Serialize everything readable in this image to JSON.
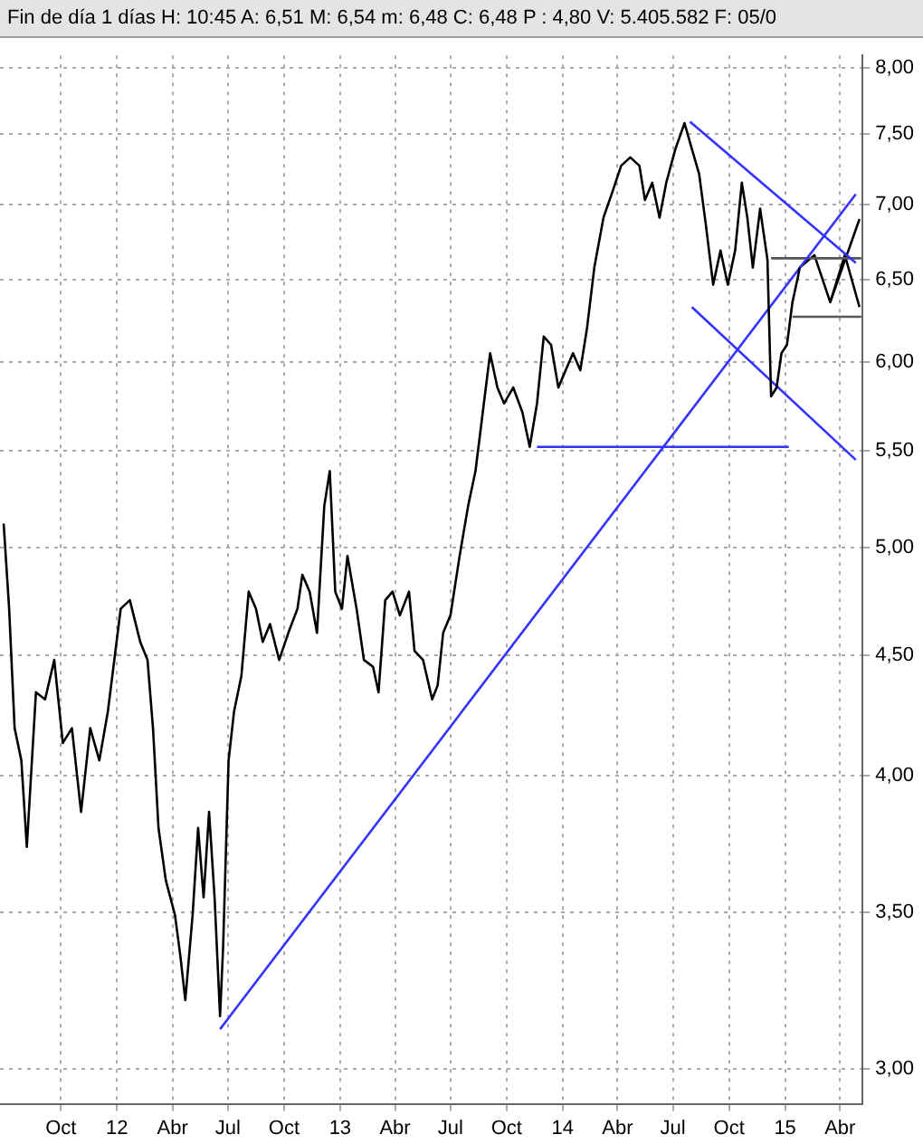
{
  "chart_data": {
    "type": "line",
    "title": "Fin de día 1 días H: 10:45 A: 6,51 M: 6,54 m: 6,48 C: 6,48 P : 4,80 V: 5.405.582 F: 05/0",
    "log": "y",
    "grid": true,
    "legend": false,
    "marker": "none",
    "xlim": [
      "2011-06-23",
      "2015-05-08"
    ],
    "xticks": [
      {
        "value": "2011-10-01",
        "label": "Oct"
      },
      {
        "value": "2012-01-01",
        "label": "12"
      },
      {
        "value": "2012-04-01",
        "label": "Abr"
      },
      {
        "value": "2012-07-01",
        "label": "Jul"
      },
      {
        "value": "2012-10-01",
        "label": "Oct"
      },
      {
        "value": "2013-01-01",
        "label": "13"
      },
      {
        "value": "2013-04-01",
        "label": "Abr"
      },
      {
        "value": "2013-07-01",
        "label": "Jul"
      },
      {
        "value": "2013-10-01",
        "label": "Oct"
      },
      {
        "value": "2014-01-01",
        "label": "14"
      },
      {
        "value": "2014-04-01",
        "label": "Abr"
      },
      {
        "value": "2014-07-01",
        "label": "Jul"
      },
      {
        "value": "2014-10-01",
        "label": "Oct"
      },
      {
        "value": "2015-01-01",
        "label": "15"
      },
      {
        "value": "2015-04-01",
        "label": "Abr"
      }
    ],
    "ylim": [
      2.91,
      8.1
    ],
    "yticks": [
      {
        "value": 3,
        "label": "3,00"
      },
      {
        "value": 3.5,
        "label": "3,50"
      },
      {
        "value": 4,
        "label": "4,00"
      },
      {
        "value": 4.5,
        "label": "4,50"
      },
      {
        "value": 5,
        "label": "5,00"
      },
      {
        "value": 5.5,
        "label": "5,50"
      },
      {
        "value": 6,
        "label": "6,00"
      },
      {
        "value": 6.5,
        "label": "6,50"
      },
      {
        "value": 7,
        "label": "7,00"
      },
      {
        "value": 7.5,
        "label": "7,50"
      },
      {
        "value": 8,
        "label": "8,00"
      }
    ],
    "series": [
      {
        "color": "#000000",
        "x": [
          "2011-06-29",
          "2011-07-08",
          "2011-07-17",
          "2011-07-28",
          "2011-08-06",
          "2011-08-21",
          "2011-09-05",
          "2011-09-20",
          "2011-10-04",
          "2011-10-19",
          "2011-11-03",
          "2011-11-18",
          "2011-12-03",
          "2011-12-17",
          "2012-01-07",
          "2012-01-22",
          "2012-02-08",
          "2012-02-20",
          "2012-02-29",
          "2012-03-09",
          "2012-03-21",
          "2012-04-05",
          "2012-04-14",
          "2012-04-22",
          "2012-05-04",
          "2012-05-13",
          "2012-05-22",
          "2012-05-31",
          "2012-06-09",
          "2012-06-18",
          "2012-06-23",
          "2012-07-02",
          "2012-07-11",
          "2012-07-23",
          "2012-08-04",
          "2012-08-16",
          "2012-08-27",
          "2012-09-08",
          "2012-09-23",
          "2012-10-08",
          "2012-10-23",
          "2012-10-31",
          "2012-11-12",
          "2012-11-24",
          "2012-12-06",
          "2012-12-15",
          "2012-12-24",
          "2013-01-04",
          "2013-01-13",
          "2013-01-28",
          "2013-02-09",
          "2013-02-24",
          "2013-03-05",
          "2013-03-16",
          "2013-03-28",
          "2013-04-09",
          "2013-04-24",
          "2013-05-03",
          "2013-05-17",
          "2013-06-01",
          "2013-06-10",
          "2013-06-19",
          "2013-07-01",
          "2013-07-16",
          "2013-07-30",
          "2013-08-11",
          "2013-08-23",
          "2013-09-04",
          "2013-09-16",
          "2013-09-27",
          "2013-10-12",
          "2013-10-27",
          "2013-11-08",
          "2013-11-20",
          "2013-12-01",
          "2013-12-13",
          "2013-12-25",
          "2014-01-06",
          "2014-01-18",
          "2014-01-30",
          "2014-02-10",
          "2014-02-22",
          "2014-03-09",
          "2014-03-24",
          "2014-04-07",
          "2014-04-22",
          "2014-05-07",
          "2014-05-16",
          "2014-05-28",
          "2014-06-09",
          "2014-06-20",
          "2014-07-05",
          "2014-07-20",
          "2014-08-01",
          "2014-08-13",
          "2014-08-24",
          "2014-09-05",
          "2014-09-17",
          "2014-09-29",
          "2014-10-11",
          "2014-10-22",
          "2014-10-31",
          "2014-11-09",
          "2014-11-21",
          "2014-12-03",
          "2014-12-09",
          "2014-12-18",
          "2014-12-26",
          "2015-01-04",
          "2015-01-13",
          "2015-01-22",
          "2015-01-25"
        ],
        "values": [
          5.12,
          4.71,
          4.19,
          4.06,
          3.73,
          4.34,
          4.31,
          4.48,
          4.13,
          4.19,
          3.86,
          4.19,
          4.06,
          4.26,
          4.71,
          4.75,
          4.56,
          4.48,
          4.19,
          3.8,
          3.61,
          3.49,
          3.35,
          3.21,
          3.49,
          3.8,
          3.55,
          3.86,
          3.55,
          3.16,
          3.38,
          4.06,
          4.26,
          4.41,
          4.79,
          4.71,
          4.56,
          4.64,
          4.48,
          4.6,
          4.71,
          4.87,
          4.79,
          4.6,
          5.21,
          5.39,
          4.79,
          4.71,
          4.96,
          4.71,
          4.48,
          4.45,
          4.34,
          4.75,
          4.79,
          4.68,
          4.79,
          4.52,
          4.48,
          4.31,
          4.37,
          4.6,
          4.68,
          4.96,
          5.21,
          5.39,
          5.71,
          6.05,
          5.85,
          5.76,
          5.85,
          5.71,
          5.52,
          5.76,
          6.15,
          6.1,
          5.85,
          5.95,
          6.05,
          5.95,
          6.2,
          6.58,
          6.91,
          7.09,
          7.27,
          7.33,
          7.27,
          7.03,
          7.15,
          6.91,
          7.15,
          7.39,
          7.58,
          7.39,
          7.21,
          6.86,
          6.47,
          6.69,
          6.47,
          6.69,
          7.15,
          6.91,
          6.58,
          6.97,
          6.63,
          5.8,
          5.85,
          6.05,
          6.1,
          6.36,
          6.52,
          6.58
        ]
      },
      {
        "color": "#3333ff",
        "x": [
          "2012-06-18",
          "2015-04-27"
        ],
        "values": [
          3.12,
          7.07
        ]
      },
      {
        "color": "#3333ff",
        "x": [
          "2013-11-20",
          "2015-01-07"
        ],
        "values": [
          5.52,
          5.52
        ]
      },
      {
        "color": "#3333ff",
        "x": [
          "2014-07-29",
          "2015-04-27"
        ],
        "values": [
          7.59,
          6.61
        ]
      },
      {
        "color": "#3333ff",
        "x": [
          "2014-08-01",
          "2015-04-27"
        ],
        "values": [
          6.33,
          5.45
        ]
      },
      {
        "color": "#555555",
        "x": [
          "2014-12-09",
          "2015-05-06"
        ],
        "values": [
          6.64,
          6.64
        ]
      },
      {
        "color": "#555555",
        "x": [
          "2015-01-13",
          "2015-05-06"
        ],
        "values": [
          6.27,
          6.27
        ]
      },
      {
        "color": "#000000",
        "x": [
          "2015-01-25",
          "2015-02-18",
          "2015-03-16",
          "2015-05-03"
        ],
        "values": [
          6.58,
          6.66,
          6.36,
          6.9
        ]
      },
      {
        "color": "#000000",
        "x": [
          "2015-03-16",
          "2015-04-09",
          "2015-05-03"
        ],
        "values": [
          6.36,
          6.66,
          6.33
        ]
      }
    ]
  }
}
